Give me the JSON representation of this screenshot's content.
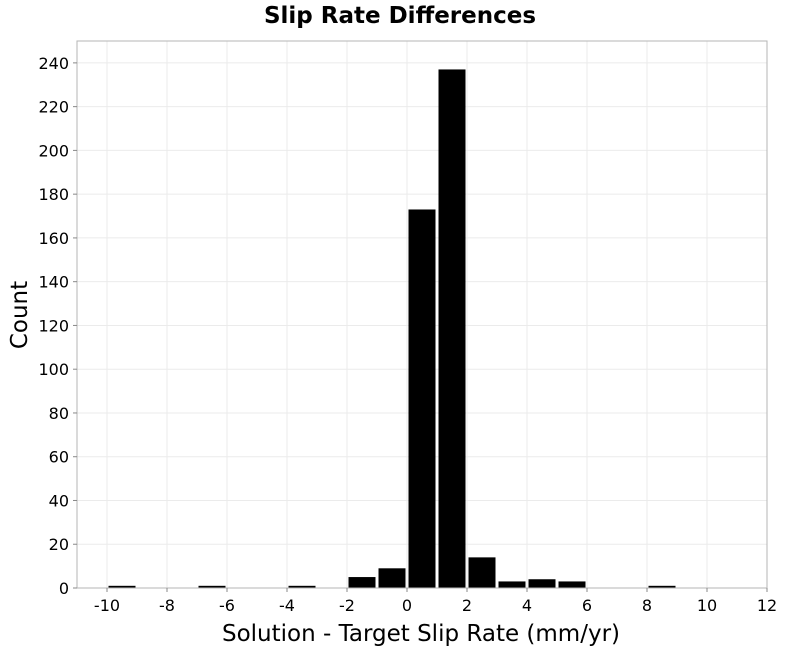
{
  "chart_data": {
    "type": "bar",
    "title": "Slip Rate Differences",
    "xlabel": "Solution - Target Slip Rate (mm/yr)",
    "ylabel": "Count",
    "xlim": [
      -11,
      12
    ],
    "ylim": [
      0,
      250
    ],
    "x_ticks": [
      -10,
      -8,
      -6,
      -4,
      -2,
      0,
      2,
      4,
      6,
      8,
      10,
      12
    ],
    "y_ticks": [
      0,
      20,
      40,
      60,
      80,
      100,
      120,
      140,
      160,
      180,
      200,
      220,
      240
    ],
    "bin_width": 1,
    "bins": [
      {
        "x": -10,
        "value": 1
      },
      {
        "x": -7,
        "value": 1
      },
      {
        "x": -4,
        "value": 1
      },
      {
        "x": -2,
        "value": 5
      },
      {
        "x": -1,
        "value": 9
      },
      {
        "x": 0,
        "value": 173
      },
      {
        "x": 1,
        "value": 237
      },
      {
        "x": 2,
        "value": 14
      },
      {
        "x": 3,
        "value": 3
      },
      {
        "x": 4,
        "value": 4
      },
      {
        "x": 5,
        "value": 3
      },
      {
        "x": 8,
        "value": 1
      }
    ],
    "grid": true,
    "bar_color": "#000000"
  }
}
